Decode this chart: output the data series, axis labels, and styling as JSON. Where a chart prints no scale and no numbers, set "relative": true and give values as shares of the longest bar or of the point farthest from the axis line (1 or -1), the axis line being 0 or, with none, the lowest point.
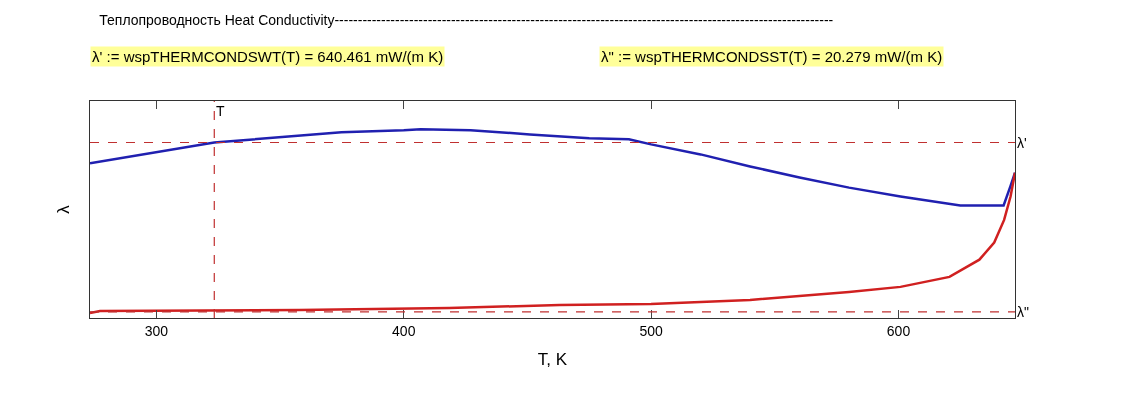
{
  "chart_data": {
    "type": "line",
    "relative": true,
    "title": "Теплопроводность Heat Conductivity-----------------------------------------------------------------------------------------------------------",
    "annotations": [
      "λ' := wspTHERMCONDSWT(T) = 640.461 mW/(m K)",
      "λ\" := wspTHERMCONDSST(T) = 20.279 mW/(m K)"
    ],
    "xlabel": "T, K",
    "ylabel": "λ",
    "xlim": [
      273.16,
      647.1
    ],
    "xticks": [
      300,
      400,
      500,
      600
    ],
    "marker": "none",
    "line_style": "solid",
    "series": [
      {
        "color": "#2020b0",
        "x": [
          273.16,
          323.4,
          354.6,
          374.8,
          400,
          406.8,
          427,
          451,
          475,
          491,
          500,
          520,
          540,
          560,
          580,
          600.8,
          625,
          642.5,
          645.3,
          647.1
        ],
        "values": [
          0.82,
          0.93,
          0.963,
          0.984,
          0.995,
          1,
          0.995,
          0.973,
          0.952,
          0.947,
          0.92,
          0.867,
          0.803,
          0.745,
          0.691,
          0.644,
          0.596,
          0.596,
          0.7,
          0.77
        ]
      },
      {
        "color": "#d02020",
        "x": [
          273.16,
          277.2,
          357.8,
          418.3,
          463,
          500,
          540,
          580,
          600.8,
          620.6,
          632.7,
          638.7,
          642.7,
          645.3,
          647.1
        ],
        "values": [
          0.027,
          0.037,
          0.043,
          0.053,
          0.069,
          0.074,
          0.096,
          0.138,
          0.165,
          0.218,
          0.309,
          0.4,
          0.52,
          0.644,
          0.77
        ]
      }
    ],
    "ref_lines": [
      {
        "axis": "y",
        "value": 0.93,
        "label": "λ'",
        "color": "#c03030",
        "line_style": "dashed"
      },
      {
        "axis": "y",
        "value": 0.032,
        "label": "λ\"",
        "color": "#c03030",
        "line_style": "dashed"
      },
      {
        "axis": "x",
        "value": 323.4,
        "label": "T",
        "color": "#c03030",
        "line_style": "dashed"
      }
    ]
  }
}
